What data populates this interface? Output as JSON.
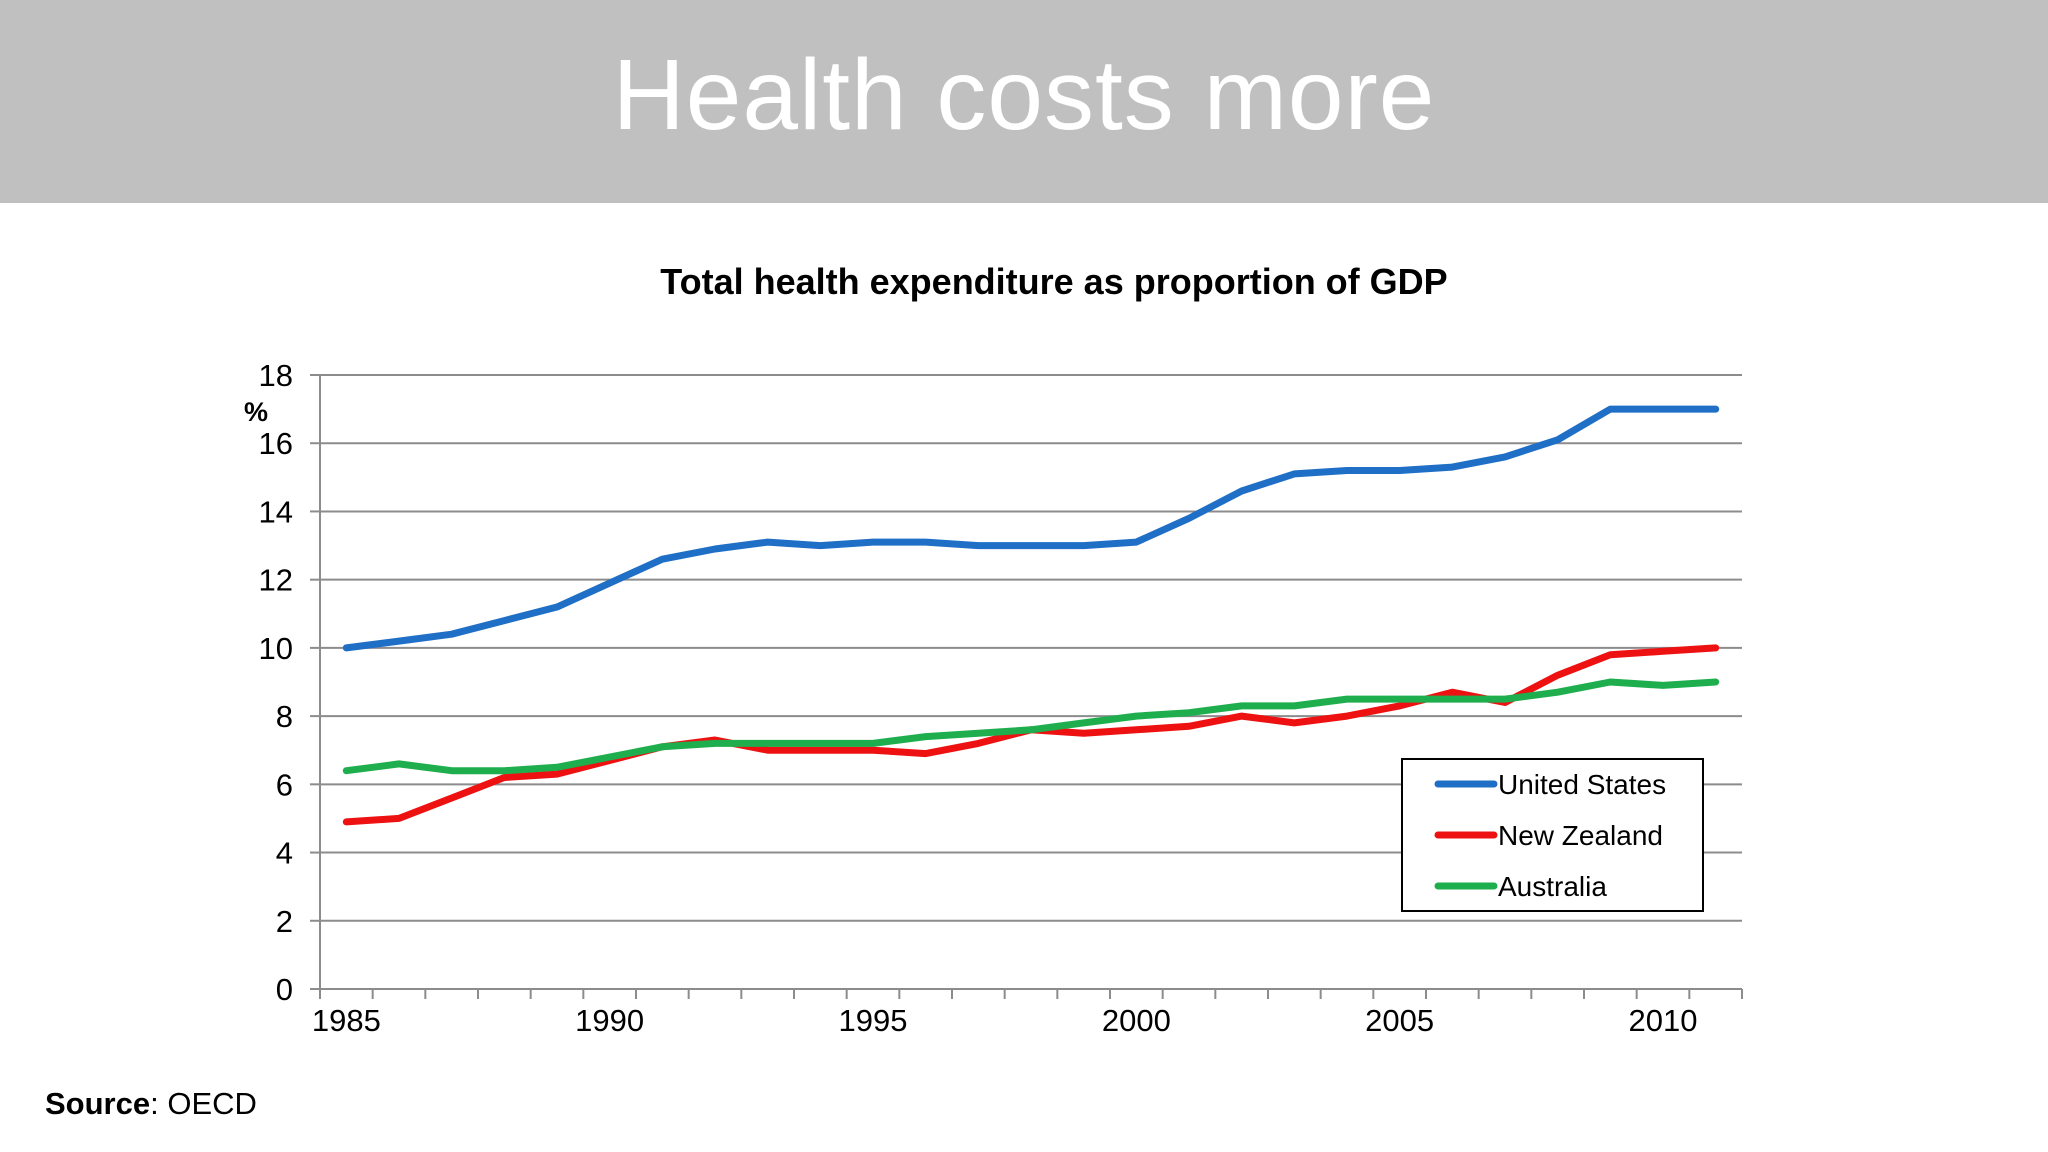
{
  "slide": {
    "title": "Health costs more",
    "source_label": "Source",
    "source_value": "OECD"
  },
  "colors": {
    "banner": "#c0c0c0",
    "united_states": "#1f6fc6",
    "new_zealand": "#ee1111",
    "australia": "#1fae4e",
    "grid": "#8c8c8c"
  },
  "chart_data": {
    "type": "line",
    "title": "Total health expenditure as proportion of GDP",
    "ylabel": "%",
    "xlabel": "",
    "ylim": [
      0,
      18
    ],
    "y_ticks": [
      0,
      2,
      4,
      6,
      8,
      10,
      12,
      14,
      16,
      18
    ],
    "x_range": [
      1984.5,
      2011.5
    ],
    "x_tick_labels": [
      1985,
      1990,
      1995,
      2000,
      2005,
      2010
    ],
    "grid": "horizontal",
    "legend_position": "bottom-right",
    "x": [
      1985,
      1986,
      1987,
      1988,
      1989,
      1990,
      1991,
      1992,
      1993,
      1994,
      1995,
      1996,
      1997,
      1998,
      1999,
      2000,
      2001,
      2002,
      2003,
      2004,
      2005,
      2006,
      2007,
      2008,
      2009,
      2010,
      2011
    ],
    "series": [
      {
        "name": "United States",
        "color": "#1f6fc6",
        "values": [
          10.0,
          10.2,
          10.4,
          10.8,
          11.2,
          11.9,
          12.6,
          12.9,
          13.1,
          13.0,
          13.1,
          13.1,
          13.0,
          13.0,
          13.0,
          13.1,
          13.8,
          14.6,
          15.1,
          15.2,
          15.2,
          15.3,
          15.6,
          16.1,
          17.0,
          17.0,
          17.0
        ]
      },
      {
        "name": "New Zealand",
        "color": "#ee1111",
        "values": [
          4.9,
          5.0,
          5.6,
          6.2,
          6.3,
          6.7,
          7.1,
          7.3,
          7.0,
          7.0,
          7.0,
          6.9,
          7.2,
          7.6,
          7.5,
          7.6,
          7.7,
          8.0,
          7.8,
          8.0,
          8.3,
          8.7,
          8.4,
          9.2,
          9.8,
          9.9,
          10.0
        ]
      },
      {
        "name": "Australia",
        "color": "#1fae4e",
        "values": [
          6.4,
          6.6,
          6.4,
          6.4,
          6.5,
          6.8,
          7.1,
          7.2,
          7.2,
          7.2,
          7.2,
          7.4,
          7.5,
          7.6,
          7.8,
          8.0,
          8.1,
          8.3,
          8.3,
          8.5,
          8.5,
          8.5,
          8.5,
          8.7,
          9.0,
          8.9,
          9.0
        ]
      }
    ]
  }
}
